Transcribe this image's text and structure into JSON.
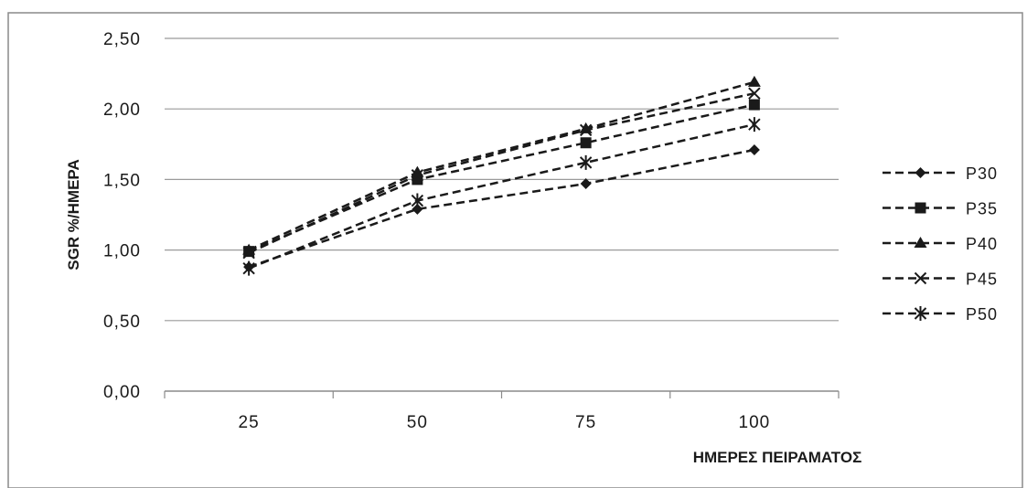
{
  "chart_data": {
    "type": "line",
    "title": "",
    "xlabel": "ΗΜΕΡΕΣ ΠΕΙΡΑΜΑΤΟΣ",
    "ylabel": "SGR %/ΗΜΕΡΑ",
    "categories": [
      "25",
      "50",
      "75",
      "100"
    ],
    "y_ticks": [
      "0,00",
      "0,50",
      "1,00",
      "1,50",
      "2,00",
      "2,50"
    ],
    "ylim": [
      0,
      2.5
    ],
    "grid": true,
    "legend_position": "right",
    "line_style": "dashed",
    "line_color": "#1a1a1a",
    "series": [
      {
        "name": "P30",
        "marker": "diamond",
        "values": [
          0.88,
          1.29,
          1.47,
          1.71
        ]
      },
      {
        "name": "P35",
        "marker": "square",
        "values": [
          0.99,
          1.5,
          1.76,
          2.03
        ]
      },
      {
        "name": "P40",
        "marker": "triangle",
        "values": [
          1.0,
          1.55,
          1.86,
          2.19
        ]
      },
      {
        "name": "P45",
        "marker": "x",
        "values": [
          0.98,
          1.53,
          1.85,
          2.11
        ]
      },
      {
        "name": "P50",
        "marker": "star",
        "values": [
          0.87,
          1.35,
          1.62,
          1.89
        ]
      }
    ]
  }
}
